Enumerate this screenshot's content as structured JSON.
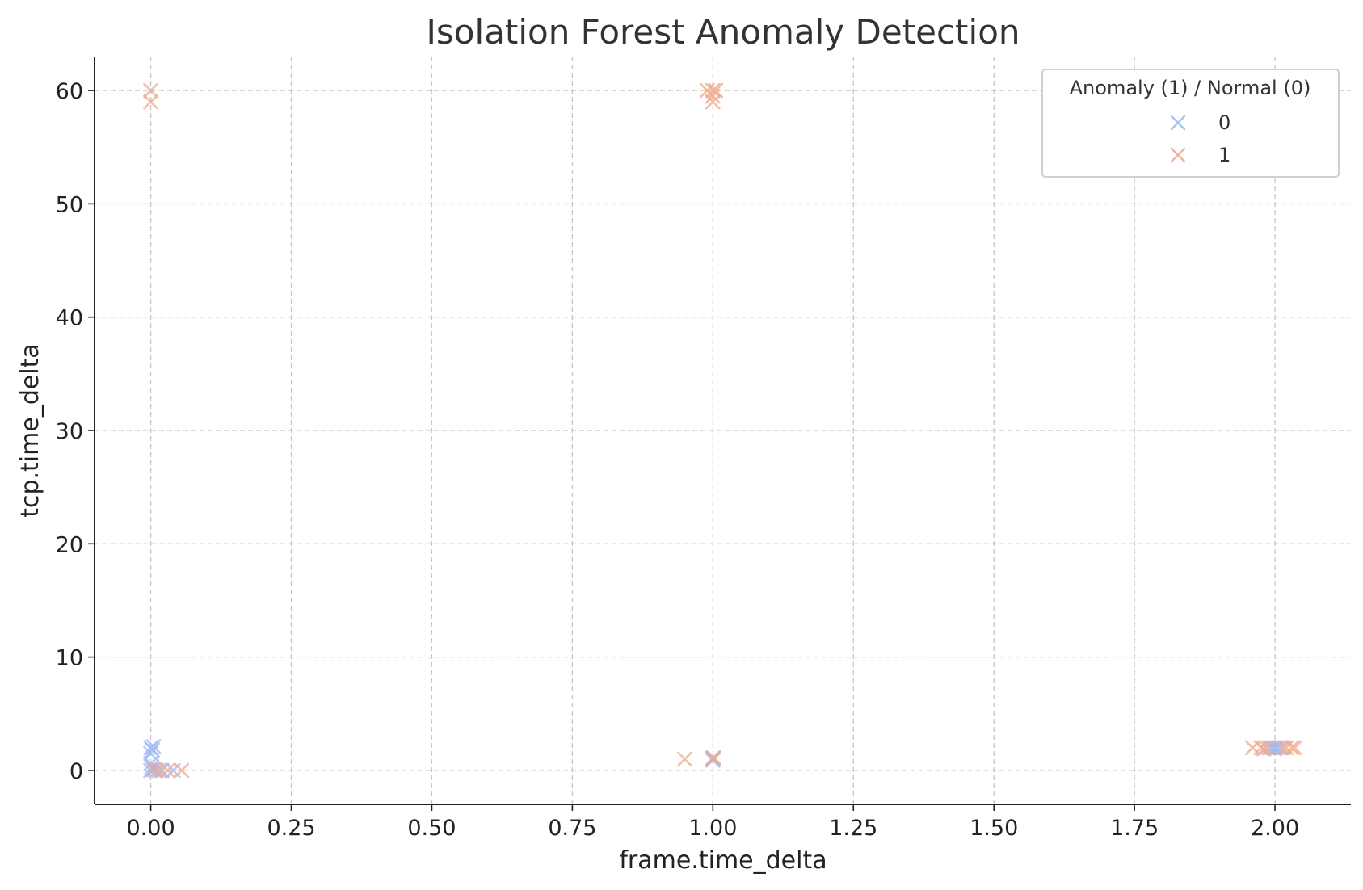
{
  "chart_data": {
    "type": "scatter",
    "title": "Isolation Forest Anomaly Detection",
    "xlabel": "frame.time_delta",
    "ylabel": "tcp.time_delta",
    "xlim": [
      -0.1,
      2.135
    ],
    "ylim": [
      -3,
      63
    ],
    "x_ticks": [
      0.0,
      0.25,
      0.5,
      0.75,
      1.0,
      1.25,
      1.5,
      1.75,
      2.0
    ],
    "x_tick_labels": [
      "0.00",
      "0.25",
      "0.50",
      "0.75",
      "1.00",
      "1.25",
      "1.50",
      "1.75",
      "2.00"
    ],
    "y_ticks": [
      0,
      10,
      20,
      30,
      40,
      50,
      60
    ],
    "y_tick_labels": [
      "0",
      "10",
      "20",
      "30",
      "40",
      "50",
      "60"
    ],
    "grid": true,
    "marker": "x",
    "legend": {
      "title": "Anomaly (1) / Normal (0)",
      "placement": "top-right"
    },
    "series": [
      {
        "name": "0",
        "color": "#9fb9f2",
        "points": [
          [
            0.0,
            2.0
          ],
          [
            0.003,
            1.8
          ],
          [
            0.005,
            2.1
          ],
          [
            0.0,
            1.5
          ],
          [
            0.0,
            0.6
          ],
          [
            0.002,
            0.3
          ],
          [
            0.0,
            0.0
          ],
          [
            0.005,
            0.05
          ],
          [
            0.01,
            0.0
          ],
          [
            0.04,
            0.0
          ],
          [
            0.02,
            0.0
          ],
          [
            1.0,
            1.1
          ],
          [
            1.0,
            0.9
          ],
          [
            1.995,
            2.0
          ],
          [
            2.0,
            2.0
          ],
          [
            2.005,
            2.0
          ],
          [
            2.01,
            2.0
          ],
          [
            1.99,
            2.0
          ],
          [
            2.0,
            1.9
          ]
        ]
      },
      {
        "name": "1",
        "color": "#eea98e",
        "points": [
          [
            0.0,
            60.0
          ],
          [
            0.0,
            59.0
          ],
          [
            0.99,
            60.0
          ],
          [
            1.0,
            60.0
          ],
          [
            1.005,
            60.0
          ],
          [
            1.0,
            59.5
          ],
          [
            1.0,
            59.0
          ],
          [
            0.95,
            1.0
          ],
          [
            1.0,
            1.0
          ],
          [
            1.002,
            1.1
          ],
          [
            0.015,
            0.0
          ],
          [
            0.03,
            0.0
          ],
          [
            0.055,
            0.0
          ],
          [
            0.005,
            0.1
          ],
          [
            1.96,
            2.0
          ],
          [
            1.975,
            2.0
          ],
          [
            1.985,
            2.0
          ],
          [
            2.015,
            2.0
          ],
          [
            2.02,
            2.0
          ],
          [
            2.03,
            2.0
          ],
          [
            2.035,
            2.0
          ],
          [
            1.98,
            1.9
          ]
        ]
      }
    ]
  }
}
